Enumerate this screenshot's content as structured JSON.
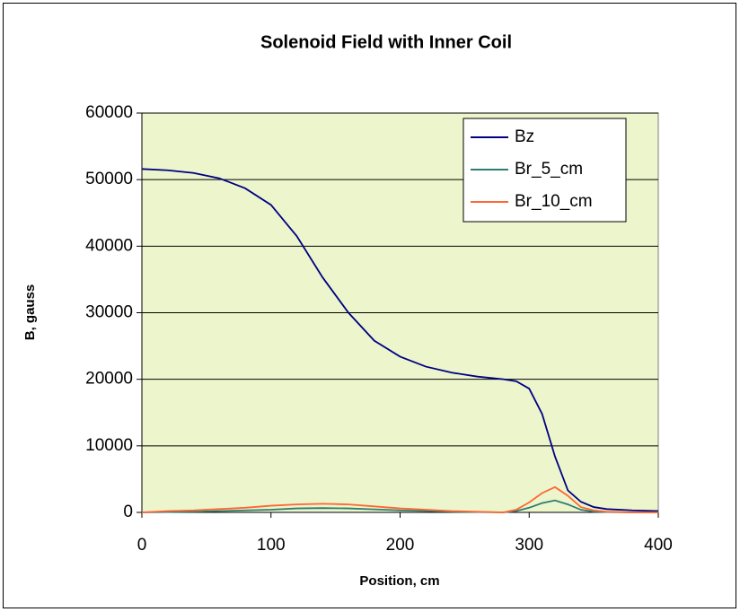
{
  "chart_data": {
    "type": "line",
    "title": "Solenoid Field with Inner Coil",
    "x_label": "Position, cm",
    "y_label": "B, gauss",
    "x": [
      0,
      20,
      40,
      60,
      80,
      100,
      120,
      140,
      160,
      180,
      200,
      220,
      240,
      260,
      280,
      290,
      300,
      310,
      320,
      330,
      340,
      350,
      360,
      380,
      400
    ],
    "series": [
      {
        "name": "Bz",
        "color": "#000080",
        "values": [
          51600,
          51400,
          51000,
          50200,
          48700,
          46200,
          41500,
          35300,
          30000,
          25800,
          23400,
          21900,
          21000,
          20400,
          20000,
          19700,
          18600,
          14800,
          8400,
          3300,
          1600,
          800,
          500,
          300,
          200
        ]
      },
      {
        "name": "Br_5_cm",
        "color": "#2e7d72",
        "values": [
          0,
          50,
          100,
          200,
          300,
          400,
          600,
          650,
          600,
          450,
          300,
          200,
          100,
          50,
          0,
          200,
          700,
          1400,
          1800,
          1200,
          400,
          100,
          50,
          0,
          0
        ]
      },
      {
        "name": "Br_10_cm",
        "color": "#ff6633",
        "values": [
          0,
          200,
          300,
          500,
          700,
          1000,
          1200,
          1300,
          1200,
          900,
          600,
          400,
          200,
          100,
          0,
          400,
          1500,
          2900,
          3800,
          2500,
          800,
          300,
          100,
          0,
          0
        ]
      }
    ],
    "xlim": [
      0,
      400
    ],
    "xticks": [
      0,
      100,
      200,
      300,
      400
    ],
    "ylim": [
      0,
      60000
    ],
    "yticks": [
      0,
      10000,
      20000,
      30000,
      40000,
      50000,
      60000
    ],
    "grid": true,
    "legend": "upper-right"
  }
}
